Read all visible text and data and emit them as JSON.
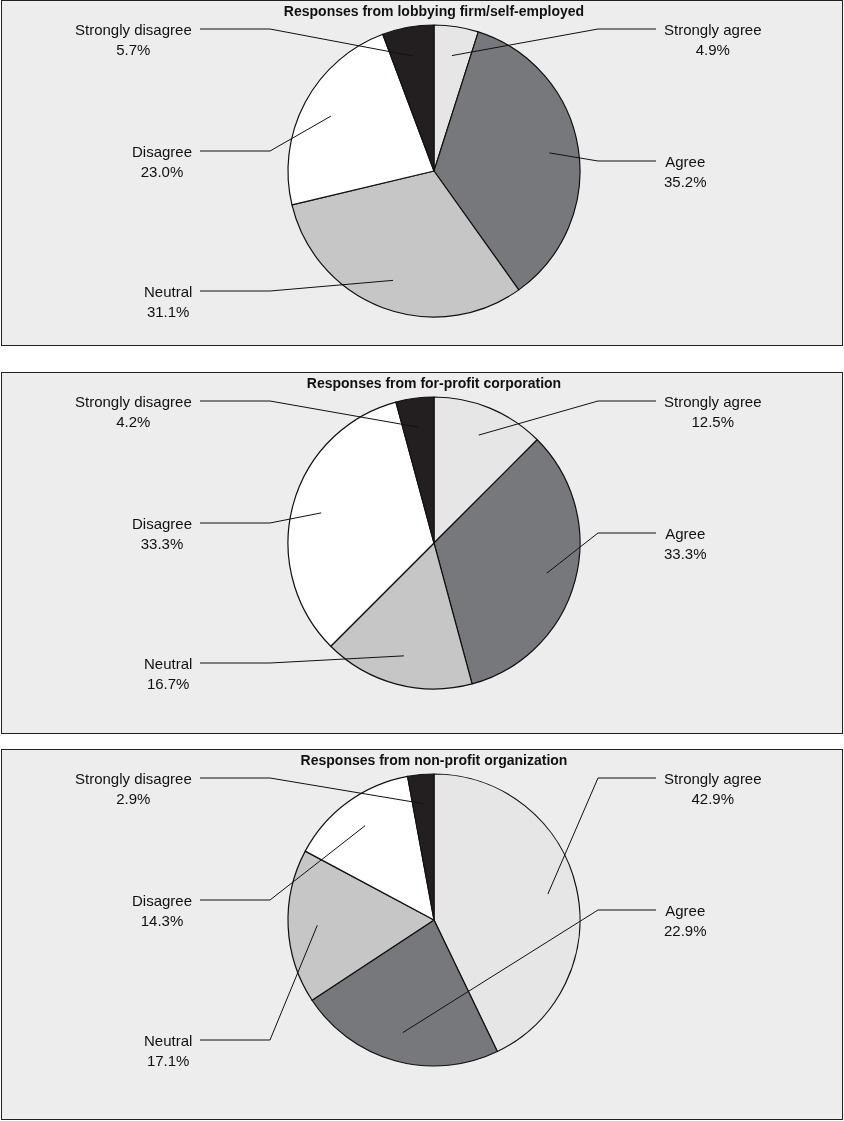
{
  "chart_data": [
    {
      "type": "pie",
      "title": "Responses from lobbying firm/self-employed",
      "categories": [
        "Strongly agree",
        "Agree",
        "Neutral",
        "Disagree",
        "Strongly disagree"
      ],
      "values": [
        4.9,
        35.2,
        31.1,
        23.0,
        5.7
      ],
      "value_labels": [
        "4.9%",
        "35.2%",
        "31.1%",
        "23.0%",
        "5.7%"
      ],
      "colors": [
        "#e6e6e6",
        "#77787b",
        "#c6c6c6",
        "#ffffff",
        "#231f20"
      ],
      "legend": false
    },
    {
      "type": "pie",
      "title": "Responses from for-profit corporation",
      "categories": [
        "Strongly agree",
        "Agree",
        "Neutral",
        "Disagree",
        "Strongly disagree"
      ],
      "values": [
        12.5,
        33.3,
        16.7,
        33.3,
        4.2
      ],
      "value_labels": [
        "12.5%",
        "33.3%",
        "16.7%",
        "33.3%",
        "4.2%"
      ],
      "colors": [
        "#e6e6e6",
        "#77787b",
        "#c6c6c6",
        "#ffffff",
        "#231f20"
      ],
      "legend": false
    },
    {
      "type": "pie",
      "title": "Responses from non-profit organization",
      "categories": [
        "Strongly agree",
        "Agree",
        "Neutral",
        "Disagree",
        "Strongly disagree"
      ],
      "values": [
        42.9,
        22.9,
        17.1,
        14.3,
        2.9
      ],
      "value_labels": [
        "42.9%",
        "22.9%",
        "17.1%",
        "14.3%",
        "2.9%"
      ],
      "colors": [
        "#e6e6e6",
        "#77787b",
        "#c6c6c6",
        "#ffffff",
        "#231f20"
      ],
      "legend": false
    }
  ]
}
